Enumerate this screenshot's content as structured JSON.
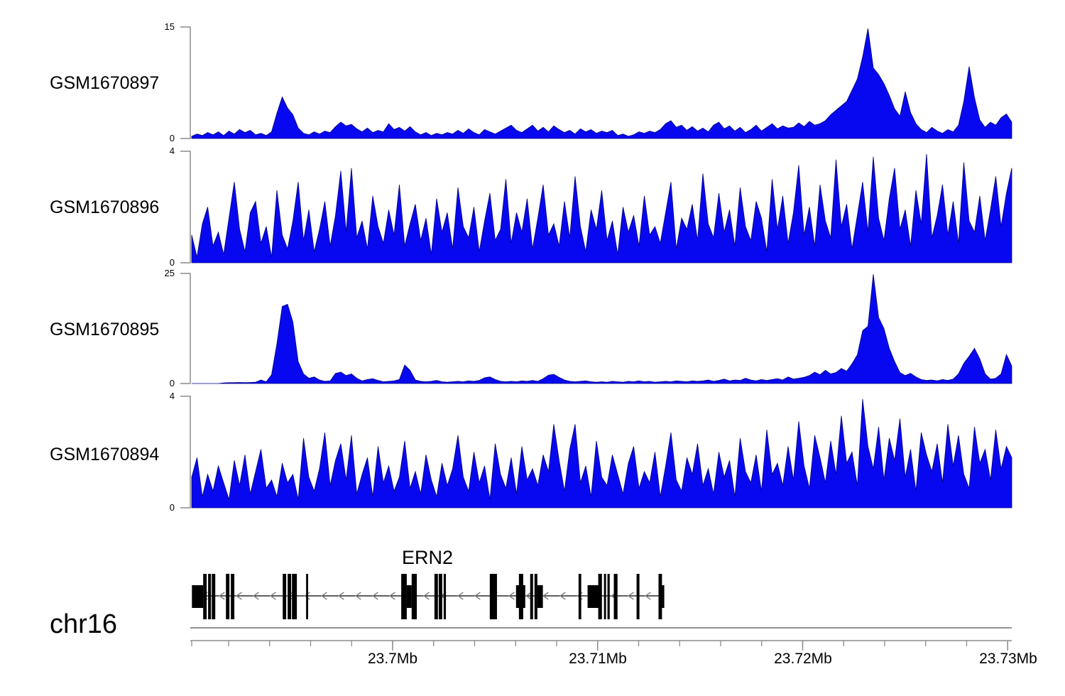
{
  "axis": {
    "chrom_label": "chr16",
    "unit": "Mb",
    "domain_mb": [
      23.6902,
      23.7302
    ],
    "minor_tick_interval_mb": 0.002,
    "major_ticks": [
      {
        "pos": 23.7,
        "label": "23.7Mb"
      },
      {
        "pos": 23.71,
        "label": "23.71Mb"
      },
      {
        "pos": 23.72,
        "label": "23.72Mb"
      },
      {
        "pos": 23.73,
        "label": "23.73Mb"
      }
    ]
  },
  "gene": {
    "label": "ERN2",
    "strand": "-",
    "span_mb": [
      23.69021,
      23.71325
    ],
    "exons_full_mb": [
      [
        23.69076,
        23.69093
      ],
      [
        23.691,
        23.69114
      ],
      [
        23.69118,
        23.69135
      ],
      [
        23.69187,
        23.69204
      ],
      [
        23.69211,
        23.69228
      ],
      [
        23.69464,
        23.69481
      ],
      [
        23.69488,
        23.69505
      ],
      [
        23.69509,
        23.69533
      ],
      [
        23.69578,
        23.69588
      ],
      [
        23.70042,
        23.70069
      ],
      [
        23.70093,
        23.70118
      ],
      [
        23.70204,
        23.70221
      ],
      [
        23.70225,
        23.70242
      ],
      [
        23.70249,
        23.7026
      ],
      [
        23.70474,
        23.70509
      ],
      [
        23.70616,
        23.70637
      ],
      [
        23.70671,
        23.70685
      ],
      [
        23.70692,
        23.70706
      ],
      [
        23.70907,
        23.7092
      ],
      [
        23.71003,
        23.71021
      ],
      [
        23.71031,
        23.71041
      ],
      [
        23.71048,
        23.71059
      ],
      [
        23.71079,
        23.71097
      ],
      [
        23.7119,
        23.71204
      ],
      [
        23.71297,
        23.71314
      ]
    ],
    "exons_half_mb": [
      [
        23.69021,
        23.69076
      ],
      [
        23.70069,
        23.70093
      ],
      [
        23.70602,
        23.70647
      ],
      [
        23.70706,
        23.70733
      ],
      [
        23.70951,
        23.7101
      ],
      [
        23.71314,
        23.71325
      ]
    ]
  },
  "colors": {
    "signal_fill": "#0808f0",
    "signal_stroke": "#000080",
    "axis_line": "#8c8c8c",
    "gene_color": "#000000",
    "arrow_color": "#808080",
    "baseline_color": "#555555",
    "text_color": "#000000"
  },
  "chart_data": [
    {
      "type": "area",
      "name": "GSM1670897",
      "ymax": 15,
      "ymax_label": "15",
      "ymin_label": "0",
      "x_range_mb": [
        23.6902,
        23.7302
      ],
      "values": [
        0.3,
        0.6,
        0.4,
        0.8,
        0.5,
        0.9,
        0.4,
        1.0,
        0.6,
        1.2,
        0.8,
        1.1,
        0.5,
        0.7,
        0.4,
        0.9,
        3.4,
        5.6,
        4.1,
        3.2,
        1.4,
        0.7,
        0.5,
        0.9,
        0.6,
        1.0,
        0.8,
        1.6,
        2.2,
        1.7,
        1.9,
        1.3,
        0.9,
        1.4,
        0.8,
        1.1,
        0.9,
        2.0,
        1.2,
        1.5,
        1.0,
        1.6,
        0.9,
        0.5,
        0.8,
        0.4,
        0.7,
        0.5,
        0.8,
        0.6,
        1.1,
        0.7,
        1.3,
        0.8,
        0.5,
        1.2,
        0.9,
        0.6,
        1.0,
        1.4,
        1.8,
        1.1,
        0.8,
        1.3,
        1.8,
        1.0,
        1.5,
        0.9,
        1.7,
        1.2,
        0.8,
        1.1,
        0.6,
        1.3,
        0.9,
        1.2,
        0.7,
        1.0,
        0.8,
        1.1,
        0.4,
        0.6,
        0.3,
        0.5,
        0.9,
        0.7,
        1.0,
        0.8,
        1.2,
        2.0,
        2.4,
        1.5,
        1.8,
        1.1,
        1.6,
        1.0,
        1.4,
        0.9,
        1.8,
        2.2,
        1.3,
        1.7,
        1.0,
        1.5,
        0.8,
        1.2,
        1.8,
        1.0,
        1.5,
        2.0,
        1.3,
        1.7,
        1.4,
        1.5,
        2.1,
        1.6,
        2.3,
        1.8,
        2.0,
        2.4,
        3.2,
        3.8,
        4.4,
        5.0,
        6.5,
        8.0,
        11.0,
        14.8,
        9.5,
        8.6,
        7.4,
        5.8,
        4.0,
        3.0,
        6.3,
        3.5,
        2.0,
        1.2,
        0.8,
        1.5,
        1.0,
        0.7,
        1.2,
        0.9,
        1.8,
        5.0,
        9.7,
        5.5,
        2.5,
        1.5,
        2.2,
        1.8,
        2.8,
        3.3,
        2.2
      ]
    },
    {
      "type": "area",
      "name": "GSM1670896",
      "ymax": 4,
      "ymax_label": "4",
      "ymin_label": "0",
      "x_range_mb": [
        23.6902,
        23.7302
      ],
      "values": [
        1.0,
        0.2,
        1.4,
        2.0,
        0.6,
        1.1,
        0.3,
        1.6,
        2.9,
        1.2,
        0.4,
        1.8,
        2.2,
        0.7,
        1.3,
        0.2,
        2.6,
        1.0,
        0.5,
        1.5,
        2.9,
        0.8,
        1.9,
        0.4,
        1.2,
        2.2,
        0.6,
        1.7,
        3.3,
        1.1,
        3.4,
        0.9,
        1.5,
        0.5,
        2.4,
        1.3,
        0.7,
        1.9,
        1.0,
        2.8,
        0.6,
        1.4,
        2.1,
        0.8,
        1.6,
        0.3,
        2.3,
        1.1,
        1.8,
        0.5,
        2.7,
        1.3,
        0.9,
        2.0,
        0.4,
        1.5,
        2.5,
        0.8,
        1.2,
        3.0,
        0.7,
        1.8,
        1.1,
        2.3,
        0.5,
        1.6,
        2.8,
        1.0,
        1.4,
        0.6,
        2.2,
        0.9,
        3.1,
        1.3,
        0.4,
        1.9,
        1.2,
        2.6,
        0.8,
        1.5,
        0.3,
        2.0,
        1.1,
        1.7,
        0.6,
        2.4,
        1.0,
        1.3,
        0.7,
        1.8,
        2.9,
        0.5,
        1.6,
        1.2,
        2.1,
        0.8,
        3.2,
        1.4,
        0.9,
        2.5,
        1.1,
        1.9,
        0.6,
        2.7,
        1.3,
        0.8,
        2.2,
        1.6,
        0.4,
        3.0,
        1.2,
        2.4,
        0.7,
        1.8,
        3.5,
        1.0,
        2.0,
        0.6,
        2.8,
        1.5,
        0.9,
        3.7,
        1.3,
        2.1,
        0.5,
        1.7,
        2.9,
        1.1,
        3.8,
        1.6,
        0.8,
        2.3,
        3.4,
        1.2,
        1.9,
        0.6,
        2.6,
        1.4,
        3.9,
        0.9,
        1.7,
        2.8,
        1.0,
        2.2,
        0.7,
        3.6,
        1.5,
        1.1,
        2.4,
        0.8,
        1.9,
        3.1,
        1.3,
        2.5,
        3.4
      ]
    },
    {
      "type": "area",
      "name": "GSM1670895",
      "ymax": 25,
      "ymax_label": "25",
      "ymin_label": "0",
      "x_range_mb": [
        23.6902,
        23.7302
      ],
      "values": [
        0,
        0,
        0,
        0,
        0,
        0,
        0.15,
        0.2,
        0.2,
        0.25,
        0.2,
        0.25,
        0.3,
        0.8,
        0.4,
        2.0,
        9.0,
        17.5,
        18.0,
        14.0,
        5.0,
        2.2,
        1.2,
        1.5,
        0.8,
        0.5,
        0.6,
        2.3,
        2.6,
        1.8,
        2.2,
        1.2,
        0.6,
        0.9,
        1.1,
        0.7,
        0.4,
        0.5,
        0.6,
        0.9,
        4.2,
        3.0,
        0.8,
        0.5,
        0.4,
        0.5,
        0.7,
        0.4,
        0.3,
        0.4,
        0.5,
        0.4,
        0.6,
        0.5,
        0.7,
        1.3,
        1.5,
        0.9,
        0.5,
        0.4,
        0.5,
        0.4,
        0.6,
        0.5,
        0.7,
        0.5,
        1.1,
        1.9,
        2.1,
        1.4,
        0.8,
        0.5,
        0.4,
        0.5,
        0.6,
        0.4,
        0.3,
        0.4,
        0.3,
        0.5,
        0.4,
        0.3,
        0.5,
        0.4,
        0.6,
        0.4,
        0.5,
        0.3,
        0.4,
        0.5,
        0.4,
        0.6,
        0.5,
        0.4,
        0.6,
        0.5,
        0.6,
        0.8,
        0.5,
        0.7,
        1.0,
        0.6,
        0.8,
        0.7,
        1.2,
        0.8,
        0.6,
        0.9,
        0.7,
        0.9,
        1.1,
        0.8,
        1.5,
        1.0,
        1.2,
        1.4,
        1.8,
        2.6,
        2.0,
        3.0,
        2.2,
        2.5,
        3.4,
        2.8,
        4.5,
        6.5,
        12.0,
        13.0,
        24.8,
        15.0,
        12.5,
        8.0,
        5.0,
        2.5,
        1.8,
        2.3,
        1.5,
        0.9,
        0.7,
        0.8,
        0.6,
        0.9,
        0.7,
        1.0,
        2.2,
        4.6,
        6.2,
        8.0,
        5.6,
        2.2,
        1.0,
        1.2,
        2.2,
        6.6,
        4.0
      ]
    },
    {
      "type": "area",
      "name": "GSM1670894",
      "ymax": 4,
      "ymax_label": "4",
      "ymin_label": "0",
      "x_range_mb": [
        23.6902,
        23.7302
      ],
      "values": [
        1.1,
        1.8,
        0.4,
        1.2,
        0.6,
        1.5,
        0.9,
        0.3,
        1.7,
        0.8,
        1.9,
        0.5,
        1.3,
        2.1,
        0.7,
        1.0,
        0.4,
        1.6,
        0.9,
        1.2,
        0.3,
        2.5,
        1.1,
        0.6,
        1.4,
        2.7,
        0.8,
        1.7,
        2.3,
        1.0,
        2.6,
        0.5,
        1.2,
        1.8,
        0.4,
        2.2,
        0.9,
        1.5,
        0.6,
        1.1,
        2.4,
        0.7,
        1.3,
        0.5,
        1.9,
        1.0,
        0.4,
        1.6,
        0.8,
        1.4,
        2.6,
        1.1,
        0.6,
        2.0,
        0.9,
        1.5,
        0.3,
        2.3,
        1.2,
        0.7,
        1.8,
        0.5,
        2.2,
        1.0,
        1.4,
        0.8,
        1.9,
        1.3,
        3.0,
        1.7,
        0.6,
        2.1,
        3.0,
        0.9,
        1.5,
        0.4,
        2.4,
        1.1,
        0.8,
        1.9,
        1.2,
        0.5,
        1.6,
        2.2,
        0.7,
        1.3,
        0.9,
        2.0,
        0.4,
        1.5,
        2.7,
        1.0,
        0.6,
        1.8,
        1.2,
        2.3,
        0.8,
        1.4,
        0.5,
        2.0,
        1.1,
        1.7,
        0.4,
        2.5,
        1.3,
        0.9,
        1.9,
        0.6,
        2.8,
        1.2,
        1.6,
        0.8,
        2.2,
        1.0,
        3.1,
        1.5,
        0.7,
        2.6,
        1.8,
        0.9,
        2.4,
        1.2,
        3.3,
        1.6,
        2.0,
        0.8,
        3.9,
        2.2,
        1.4,
        2.9,
        1.0,
        2.5,
        1.7,
        3.2,
        1.1,
        2.1,
        0.6,
        2.7,
        1.9,
        1.3,
        2.3,
        0.9,
        3.0,
        1.5,
        2.6,
        1.2,
        0.7,
        2.9,
        1.6,
        2.1,
        1.0,
        2.8,
        1.4,
        2.2,
        1.8
      ]
    }
  ]
}
